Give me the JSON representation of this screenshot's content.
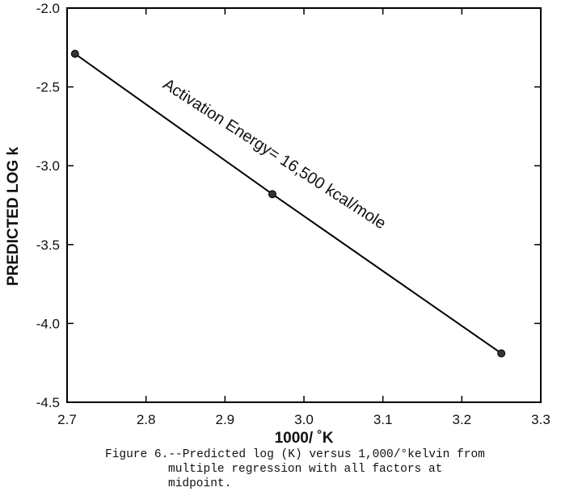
{
  "chart_data": {
    "type": "line",
    "title": "",
    "xlabel": "1000/ ˚K",
    "ylabel": "PREDICTED LOG k",
    "xlim": [
      2.7,
      3.3
    ],
    "ylim": [
      -4.5,
      -2.0
    ],
    "x_ticks": [
      "2.7",
      "2.8",
      "2.9",
      "3.0",
      "3.1",
      "3.2",
      "3.3"
    ],
    "y_ticks": [
      "-2.0",
      "-2.5",
      "-3.0",
      "-3.5",
      "-4.0",
      "-4.5"
    ],
    "grid": false,
    "series": [
      {
        "x": [
          2.71,
          2.96,
          3.25
        ],
        "y": [
          -2.29,
          -3.18,
          -4.19
        ],
        "color": "#000000",
        "markers": true
      }
    ],
    "annotations": [
      {
        "text": "Activation  Energy=  16,500 kcal/mole"
      }
    ]
  },
  "caption": {
    "line1": "Figure 6.--Predicted log (K) versus 1,000/°kelvin from",
    "line2": "multiple regression with all factors at",
    "line3": "midpoint."
  }
}
